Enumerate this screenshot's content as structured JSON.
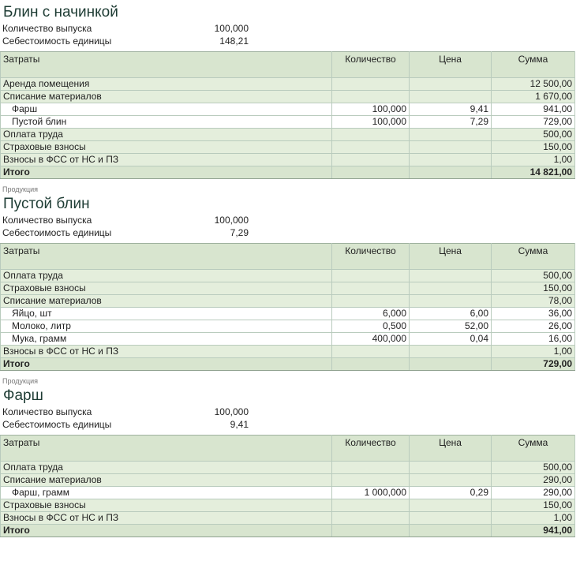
{
  "columns": {
    "name": "Затраты",
    "qty": "Количество",
    "price": "Цена",
    "sum": "Сумма"
  },
  "labels": {
    "output_qty": "Количество выпуска",
    "unit_cost": "Себестоимость единицы",
    "caption": "Продукция"
  },
  "sections": [
    {
      "caption": "",
      "title": "Блин с начинкой",
      "output_qty": "100,000",
      "unit_cost": "148,21",
      "rows": [
        {
          "type": "group",
          "name": "Аренда помещения",
          "qty": "",
          "price": "",
          "sum": "12 500,00"
        },
        {
          "type": "group",
          "name": "Списание материалов",
          "qty": "",
          "price": "",
          "sum": "1 670,00"
        },
        {
          "type": "item",
          "name": "Фарш",
          "qty": "100,000",
          "price": "9,41",
          "sum": "941,00"
        },
        {
          "type": "item",
          "name": "Пустой блин",
          "qty": "100,000",
          "price": "7,29",
          "sum": "729,00"
        },
        {
          "type": "group",
          "name": "Оплата труда",
          "qty": "",
          "price": "",
          "sum": "500,00"
        },
        {
          "type": "group",
          "name": "Страховые взносы",
          "qty": "",
          "price": "",
          "sum": "150,00"
        },
        {
          "type": "group",
          "name": "Взносы в ФСС от НС и ПЗ",
          "qty": "",
          "price": "",
          "sum": "1,00"
        },
        {
          "type": "total",
          "name": "Итого",
          "qty": "",
          "price": "",
          "sum": "14 821,00"
        }
      ]
    },
    {
      "caption": "Продукция",
      "title": "Пустой блин",
      "output_qty": "100,000",
      "unit_cost": "7,29",
      "rows": [
        {
          "type": "group",
          "name": "Оплата труда",
          "qty": "",
          "price": "",
          "sum": "500,00"
        },
        {
          "type": "group",
          "name": "Страховые взносы",
          "qty": "",
          "price": "",
          "sum": "150,00"
        },
        {
          "type": "group",
          "name": "Списание материалов",
          "qty": "",
          "price": "",
          "sum": "78,00"
        },
        {
          "type": "item",
          "name": "Яйцо, шт",
          "qty": "6,000",
          "price": "6,00",
          "sum": "36,00"
        },
        {
          "type": "item",
          "name": "Молоко, литр",
          "qty": "0,500",
          "price": "52,00",
          "sum": "26,00"
        },
        {
          "type": "item",
          "name": "Мука, грамм",
          "qty": "400,000",
          "price": "0,04",
          "sum": "16,00"
        },
        {
          "type": "group",
          "name": "Взносы в ФСС от НС и ПЗ",
          "qty": "",
          "price": "",
          "sum": "1,00"
        },
        {
          "type": "total",
          "name": "Итого",
          "qty": "",
          "price": "",
          "sum": "729,00"
        }
      ]
    },
    {
      "caption": "Продукция",
      "title": "Фарш",
      "output_qty": "100,000",
      "unit_cost": "9,41",
      "rows": [
        {
          "type": "group",
          "name": "Оплата труда",
          "qty": "",
          "price": "",
          "sum": "500,00"
        },
        {
          "type": "group",
          "name": "Списание материалов",
          "qty": "",
          "price": "",
          "sum": "290,00"
        },
        {
          "type": "item",
          "name": "Фарш, грамм",
          "qty": "1 000,000",
          "price": "0,29",
          "sum": "290,00"
        },
        {
          "type": "group",
          "name": "Страховые взносы",
          "qty": "",
          "price": "",
          "sum": "150,00"
        },
        {
          "type": "group",
          "name": "Взносы в ФСС от НС и ПЗ",
          "qty": "",
          "price": "",
          "sum": "1,00"
        },
        {
          "type": "total",
          "name": "Итого",
          "qty": "",
          "price": "",
          "sum": "941,00"
        }
      ]
    }
  ]
}
